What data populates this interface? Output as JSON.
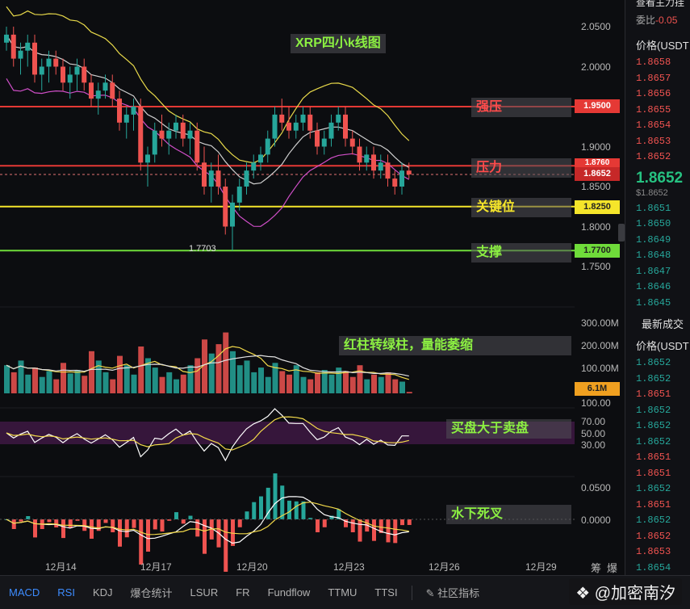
{
  "chart_data": [
    {
      "type": "candlestick",
      "title": "XRP四小k线图",
      "ylim": [
        1.72,
        2.07
      ],
      "y_ticks": [
        "2.0500",
        "2.0000",
        "1.9500",
        "1.9000",
        "1.8500",
        "1.8000",
        "1.7500"
      ],
      "x_ticks": [
        "12月14",
        "12月17",
        "12月20",
        "12月23",
        "12月26",
        "12月29"
      ],
      "last_price": "1.8652",
      "low_marker": "1.7703",
      "levels": [
        {
          "name": "强压",
          "price": "1.9500",
          "color": "#e53935"
        },
        {
          "name": "压力",
          "price": "1.8760",
          "color": "#e53935"
        },
        {
          "name": "关键位",
          "price": "1.8250",
          "color": "#f5e52a"
        },
        {
          "name": "支撑",
          "price": "1.7700",
          "color": "#6fdc3a"
        }
      ],
      "candles": [
        [
          2.03,
          2.05,
          2.02,
          2.04
        ],
        [
          2.04,
          2.05,
          2.0,
          2.01
        ],
        [
          2.01,
          2.03,
          1.99,
          2.02
        ],
        [
          2.02,
          2.04,
          2.0,
          2.03
        ],
        [
          2.03,
          2.04,
          1.98,
          1.99
        ],
        [
          1.99,
          2.01,
          1.97,
          2.0
        ],
        [
          2.0,
          2.02,
          1.98,
          2.01
        ],
        [
          2.01,
          2.02,
          1.99,
          2.0
        ],
        [
          2.0,
          2.01,
          1.97,
          1.98
        ],
        [
          1.98,
          2.0,
          1.96,
          1.99
        ],
        [
          1.99,
          2.01,
          1.97,
          2.0
        ],
        [
          2.0,
          2.01,
          1.97,
          1.98
        ],
        [
          1.98,
          1.99,
          1.95,
          1.96
        ],
        [
          1.96,
          1.98,
          1.94,
          1.97
        ],
        [
          1.97,
          1.99,
          1.96,
          1.98
        ],
        [
          1.98,
          1.99,
          1.95,
          1.96
        ],
        [
          1.96,
          1.97,
          1.92,
          1.93
        ],
        [
          1.93,
          1.95,
          1.91,
          1.94
        ],
        [
          1.94,
          1.96,
          1.92,
          1.95
        ],
        [
          1.95,
          1.96,
          1.87,
          1.88
        ],
        [
          1.88,
          1.9,
          1.85,
          1.89
        ],
        [
          1.89,
          1.93,
          1.88,
          1.92
        ],
        [
          1.92,
          1.94,
          1.9,
          1.91
        ],
        [
          1.91,
          1.93,
          1.89,
          1.92
        ],
        [
          1.92,
          1.94,
          1.91,
          1.93
        ],
        [
          1.93,
          1.94,
          1.9,
          1.91
        ],
        [
          1.91,
          1.93,
          1.89,
          1.92
        ],
        [
          1.92,
          1.93,
          1.87,
          1.88
        ],
        [
          1.88,
          1.9,
          1.84,
          1.85
        ],
        [
          1.85,
          1.88,
          1.83,
          1.87
        ],
        [
          1.87,
          1.89,
          1.84,
          1.85
        ],
        [
          1.85,
          1.86,
          1.79,
          1.8
        ],
        [
          1.8,
          1.84,
          1.77,
          1.83
        ],
        [
          1.83,
          1.86,
          1.82,
          1.85
        ],
        [
          1.85,
          1.88,
          1.84,
          1.87
        ],
        [
          1.87,
          1.89,
          1.86,
          1.88
        ],
        [
          1.88,
          1.9,
          1.87,
          1.89
        ],
        [
          1.89,
          1.92,
          1.88,
          1.91
        ],
        [
          1.91,
          1.95,
          1.9,
          1.94
        ],
        [
          1.94,
          1.96,
          1.92,
          1.93
        ],
        [
          1.93,
          1.95,
          1.91,
          1.92
        ],
        [
          1.92,
          1.94,
          1.91,
          1.93
        ],
        [
          1.93,
          1.95,
          1.92,
          1.94
        ],
        [
          1.94,
          1.95,
          1.91,
          1.92
        ],
        [
          1.92,
          1.93,
          1.89,
          1.9
        ],
        [
          1.9,
          1.92,
          1.89,
          1.91
        ],
        [
          1.91,
          1.94,
          1.9,
          1.93
        ],
        [
          1.93,
          1.95,
          1.92,
          1.94
        ],
        [
          1.94,
          1.95,
          1.9,
          1.91
        ],
        [
          1.91,
          1.92,
          1.89,
          1.9
        ],
        [
          1.9,
          1.91,
          1.87,
          1.88
        ],
        [
          1.88,
          1.9,
          1.87,
          1.89
        ],
        [
          1.89,
          1.9,
          1.86,
          1.87
        ],
        [
          1.87,
          1.89,
          1.86,
          1.88
        ],
        [
          1.88,
          1.89,
          1.85,
          1.86
        ],
        [
          1.86,
          1.87,
          1.84,
          1.85
        ],
        [
          1.85,
          1.88,
          1.84,
          1.87
        ],
        [
          1.87,
          1.88,
          1.86,
          1.8652
        ]
      ]
    },
    {
      "type": "bar",
      "name": "volume",
      "y_ticks": [
        "300.00M",
        "200.00M",
        "100.00M"
      ],
      "current": "6.1M",
      "annotation": "红柱转绿柱，量能萎缩",
      "values": [
        120,
        90,
        140,
        80,
        110,
        70,
        95,
        60,
        130,
        85,
        100,
        75,
        180,
        140,
        90,
        60,
        160,
        120,
        80,
        200,
        150,
        110,
        70,
        90,
        60,
        80,
        120,
        150,
        230,
        170,
        210,
        260,
        180,
        120,
        140,
        90,
        110,
        70,
        130,
        95,
        80,
        120,
        70,
        60,
        90,
        100,
        80,
        110,
        95,
        70,
        120,
        60,
        80,
        70,
        90,
        60,
        50,
        6.1
      ]
    },
    {
      "type": "line",
      "name": "RSI",
      "y_ticks": [
        "70.00",
        "50.00",
        "30.00"
      ],
      "axis_extra": "100.00",
      "annotation": "买盘大于卖盘"
    },
    {
      "type": "line",
      "name": "MACD",
      "y_ticks": [
        "0.0500",
        "0.0000"
      ],
      "annotation": "水下死叉"
    }
  ],
  "toolbar": {
    "tabs": [
      "MACD",
      "RSI",
      "KDJ",
      "爆仓统计",
      "LSUR",
      "FR",
      "Fundflow",
      "TTMU",
      "TTSI"
    ],
    "community": "社区指标",
    "brand": "@加密南汐"
  },
  "xaxis_right": [
    "筹",
    "爆"
  ],
  "sidebar": {
    "top_label": "查看主力挂",
    "ratio_label": "委比",
    "ratio_value": "-0.05",
    "price_header": "价格(USDT",
    "asks": [
      "1.8658",
      "1.8657",
      "1.8656",
      "1.8655",
      "1.8654",
      "1.8653",
      "1.8652"
    ],
    "mid_price": "1.8652",
    "mid_usd": "$1.8652",
    "bids": [
      "1.8651",
      "1.8650",
      "1.8649",
      "1.8648",
      "1.8647",
      "1.8646",
      "1.8645"
    ],
    "trades_header": "最新成交",
    "trades_price_header": "价格(USDT",
    "trades": [
      {
        "p": "1.8652",
        "c": "green"
      },
      {
        "p": "1.8652",
        "c": "green"
      },
      {
        "p": "1.8651",
        "c": "red"
      },
      {
        "p": "1.8652",
        "c": "green"
      },
      {
        "p": "1.8652",
        "c": "green"
      },
      {
        "p": "1.8652",
        "c": "green"
      },
      {
        "p": "1.8651",
        "c": "red"
      },
      {
        "p": "1.8651",
        "c": "red"
      },
      {
        "p": "1.8652",
        "c": "green"
      },
      {
        "p": "1.8651",
        "c": "red"
      },
      {
        "p": "1.8652",
        "c": "green"
      },
      {
        "p": "1.8652",
        "c": "red"
      },
      {
        "p": "1.8653",
        "c": "red"
      },
      {
        "p": "1.8654",
        "c": "green"
      }
    ]
  },
  "watermark": "南汐"
}
